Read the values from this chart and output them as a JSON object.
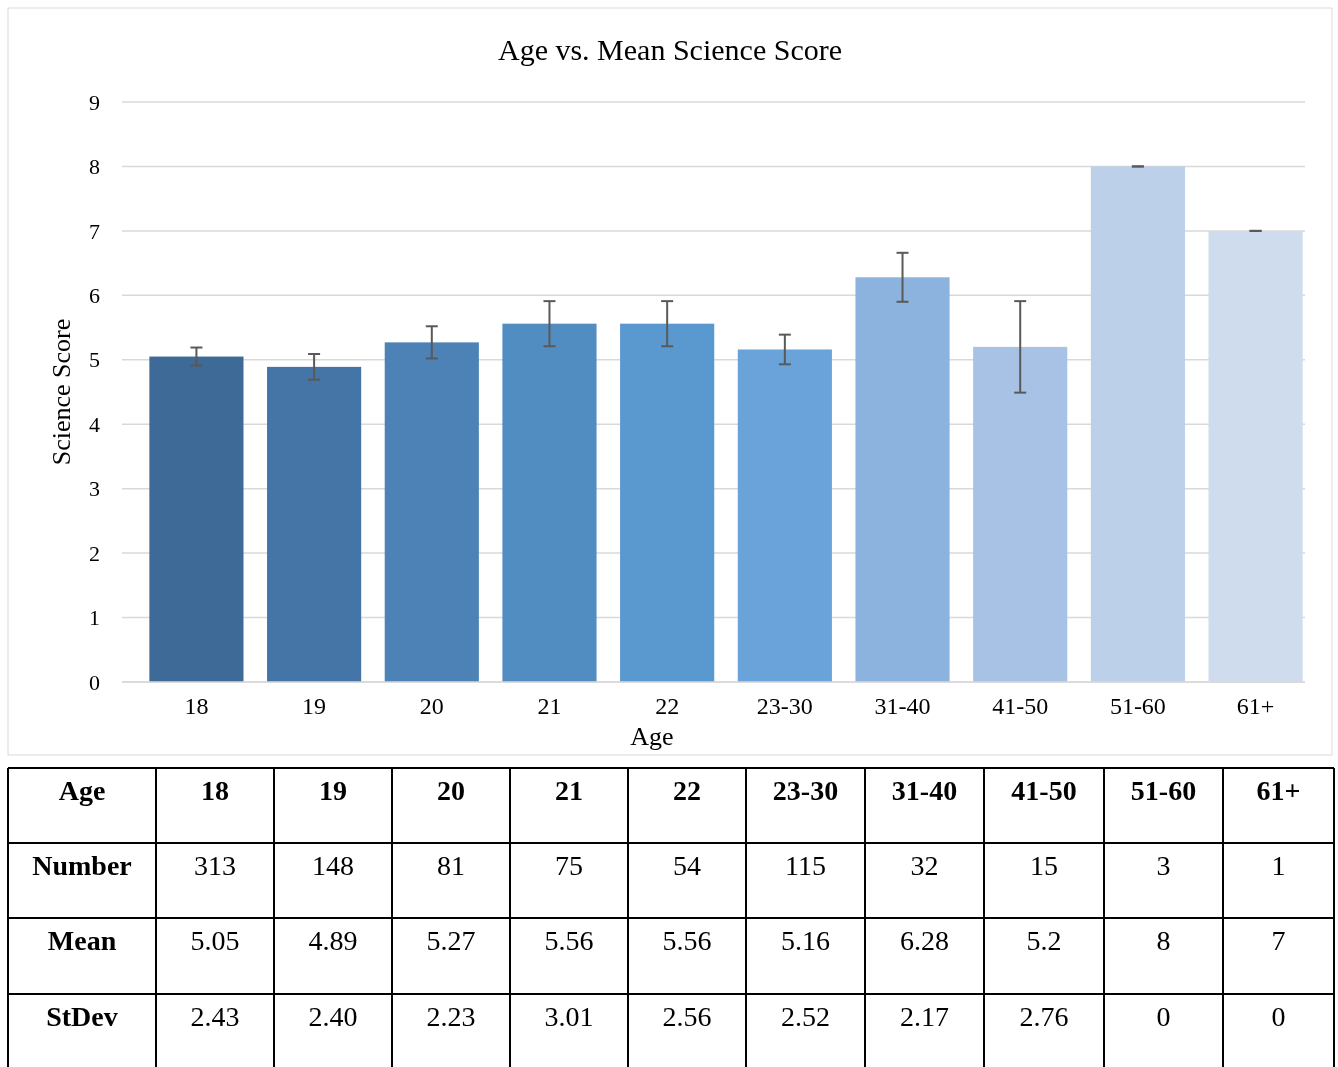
{
  "chart_data": {
    "type": "bar",
    "title": "Age vs. Mean Science Score",
    "xlabel": "Age",
    "ylabel": "Science Score",
    "categories": [
      "18",
      "19",
      "20",
      "21",
      "22",
      "23-30",
      "31-40",
      "41-50",
      "51-60",
      "61+"
    ],
    "values": [
      5.05,
      4.89,
      5.27,
      5.56,
      5.56,
      5.16,
      6.28,
      5.2,
      8,
      7
    ],
    "colors": [
      "#3d6a96",
      "#4475a6",
      "#4c82b6",
      "#528dc2",
      "#5a99cf",
      "#6aa3d9",
      "#8cb3de",
      "#a8c2e5",
      "#bcd0ea",
      "#cfdcee"
    ],
    "errors": [
      0.14,
      0.2,
      0.25,
      0.35,
      0.35,
      0.23,
      0.38,
      0.71,
      0,
      0
    ],
    "ylim": [
      0,
      9
    ],
    "yticks": [
      0,
      1,
      2,
      3,
      4,
      5,
      6,
      7,
      8,
      9
    ],
    "grid": "y",
    "data_labels": true,
    "annotations": [
      "Number",
      "313",
      "148",
      "81",
      "75",
      "54",
      "115",
      "32",
      "15",
      "3",
      "1",
      "Mean",
      "StDev",
      "2.43",
      "2.40",
      "2.23",
      "3.01",
      "2.56",
      "2.52",
      "2.17",
      "2.76",
      "0",
      "0"
    ]
  }
}
